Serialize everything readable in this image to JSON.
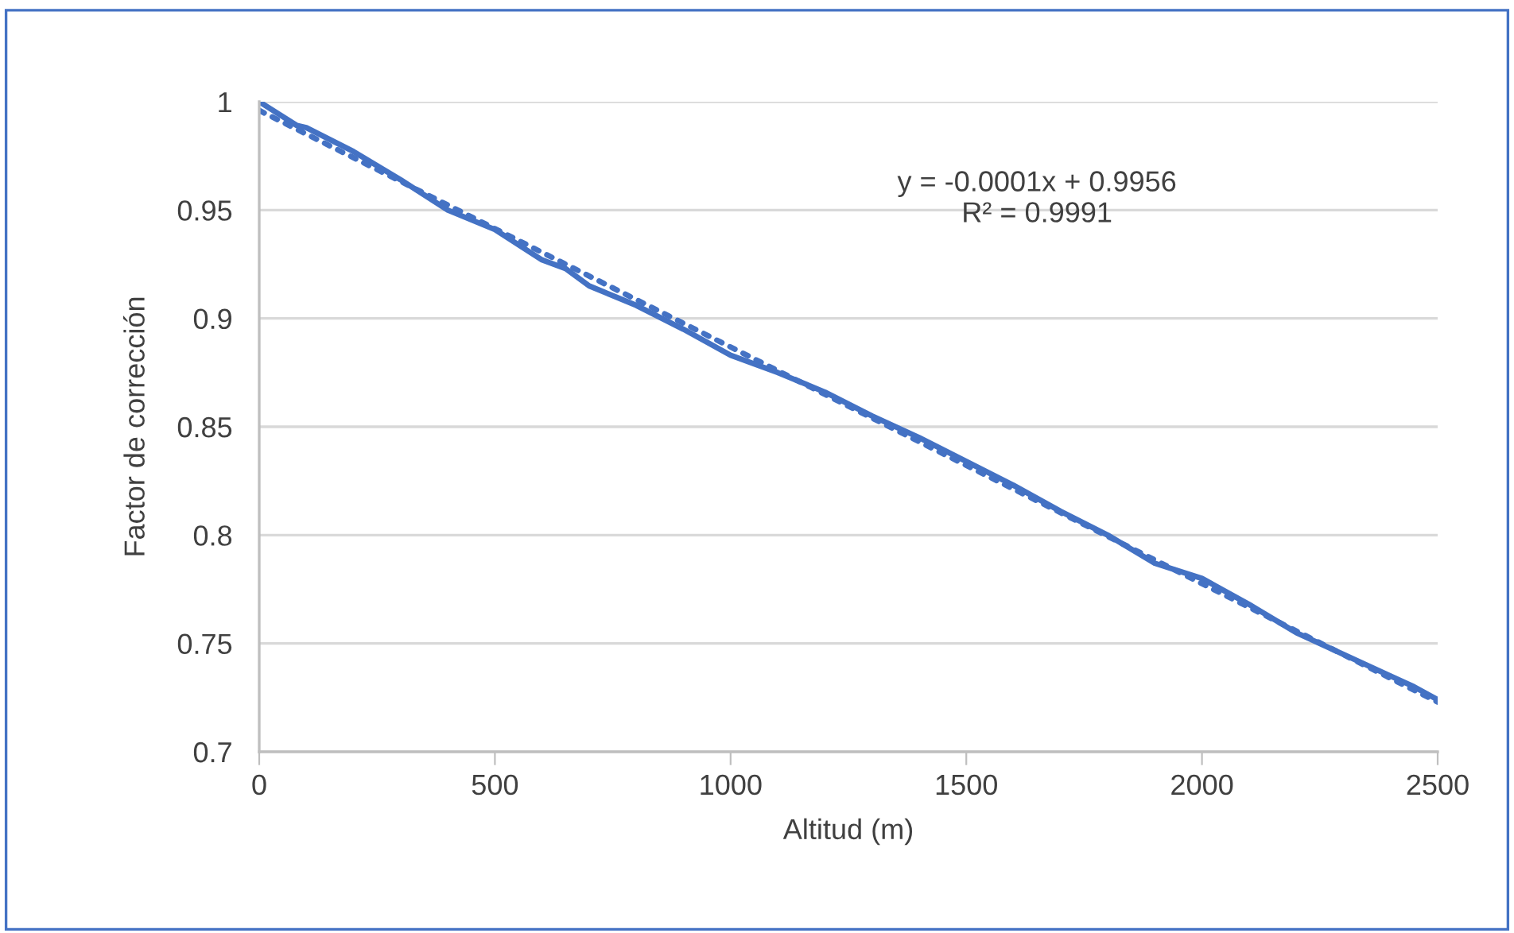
{
  "chart_data": {
    "type": "line",
    "xlabel": "Altitud (m)",
    "ylabel": "Factor de corrección",
    "xlim": [
      0,
      2500
    ],
    "xticks": [
      0,
      500,
      1000,
      1500,
      2000,
      2500
    ],
    "ylim": [
      0.7,
      1
    ],
    "yticks": [
      0.7,
      0.75,
      0.8,
      0.85,
      0.9,
      0.95,
      1
    ],
    "grid": "y",
    "legend": false,
    "marker": "none",
    "series": [
      {
        "color": "#4472c4",
        "line_style": "solid",
        "x": [
          0,
          80,
          100,
          200,
          300,
          400,
          500,
          600,
          650,
          700,
          800,
          900,
          1000,
          1100,
          1200,
          1300,
          1400,
          1500,
          1600,
          1700,
          1800,
          1900,
          2000,
          2100,
          2200,
          2300,
          2400,
          2450,
          2500
        ],
        "values": [
          1.0,
          0.989,
          0.988,
          0.977,
          0.964,
          0.95,
          0.941,
          0.927,
          0.923,
          0.915,
          0.906,
          0.895,
          0.883,
          0.875,
          0.866,
          0.855,
          0.845,
          0.834,
          0.823,
          0.811,
          0.8,
          0.787,
          0.78,
          0.768,
          0.755,
          0.745,
          0.735,
          0.73,
          0.724
        ]
      },
      {
        "color": "#4472c4",
        "line_style": "dotted",
        "x": [
          0,
          2500
        ],
        "values": [
          0.996,
          0.723
        ]
      }
    ],
    "annotations": [
      "y = -0.0001x + 0.9956\nR² = 0.9991"
    ]
  }
}
